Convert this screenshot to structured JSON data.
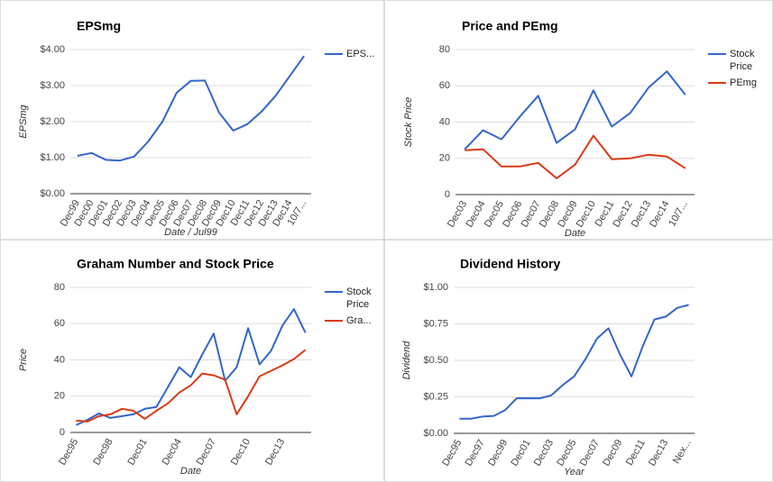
{
  "chart_data": [
    {
      "type": "line",
      "title": "EPSmg",
      "x_label": "Date / Jul99",
      "y_label": "EPSmg",
      "grid": true,
      "legend": "right",
      "categories": [
        "Dec99",
        "Dec00",
        "Dec01",
        "Dec02",
        "Dec03",
        "Dec04",
        "Dec05",
        "Dec06",
        "Dec07",
        "Dec08",
        "Dec09",
        "Dec10",
        "Dec11",
        "Dec12",
        "Dec13",
        "Dec14",
        "10/7..."
      ],
      "series": [
        {
          "name": "EPS...",
          "color": "#3366cc",
          "values": [
            1.05,
            1.13,
            0.94,
            0.92,
            1.03,
            1.45,
            2.0,
            2.8,
            3.13,
            3.14,
            2.25,
            1.75,
            1.93,
            2.28,
            2.72,
            3.27,
            3.82
          ]
        }
      ],
      "ylim": [
        0,
        4
      ],
      "yticks": [
        {
          "value": 0,
          "label": "$0.00"
        },
        {
          "value": 1,
          "label": "$1.00"
        },
        {
          "value": 2,
          "label": "$2.00"
        },
        {
          "value": 3,
          "label": "$3.00"
        },
        {
          "value": 4,
          "label": "$4.00"
        }
      ]
    },
    {
      "type": "line",
      "title": "Price and PEmg",
      "x_label": "Date",
      "y_label": "Stock Price",
      "grid": true,
      "legend": "right",
      "categories": [
        "Dec03",
        "Dec04",
        "Dec05",
        "Dec06",
        "Dec07",
        "Dec08",
        "Dec09",
        "Dec10",
        "Dec11",
        "Dec12",
        "Dec13",
        "Dec14",
        "10/7..."
      ],
      "series": [
        {
          "name": "Stock Price",
          "color": "#3366cc",
          "values": [
            25,
            35.5,
            30.5,
            43,
            54.5,
            28.5,
            36,
            57.5,
            37.5,
            45,
            59,
            68,
            55
          ]
        },
        {
          "name": "PEmg",
          "color": "#dc3912",
          "values": [
            24.5,
            25,
            15.5,
            15.5,
            17.5,
            9,
            16.5,
            32.5,
            19.5,
            20,
            22,
            21,
            14.5
          ]
        }
      ],
      "ylim": [
        0,
        80
      ],
      "yticks": [
        0,
        20,
        40,
        60,
        80
      ]
    },
    {
      "type": "line",
      "title": "Graham Number and Stock Price",
      "x_label": "Date",
      "y_label": "Price",
      "grid": true,
      "legend": "right",
      "categories": [
        "Dec95",
        null,
        null,
        "Dec98",
        null,
        null,
        "Dec01",
        null,
        null,
        "Dec04",
        null,
        null,
        "Dec07",
        null,
        null,
        "Dec10",
        null,
        null,
        "Dec13",
        null,
        null
      ],
      "series": [
        {
          "name": "Stock Price",
          "color": "#3366cc",
          "values": [
            4,
            7,
            10.5,
            8,
            9,
            10,
            13,
            14,
            25,
            36,
            30.5,
            43,
            54.5,
            28.5,
            36,
            57.5,
            37.5,
            45,
            59,
            68,
            55
          ]
        },
        {
          "name": "Gra...",
          "color": "#dc3912",
          "values": [
            6.5,
            6,
            9,
            10,
            13,
            12,
            7.5,
            12,
            16,
            22,
            26,
            32.5,
            31.5,
            29,
            10,
            20,
            31,
            34,
            37,
            40.5,
            45.5
          ]
        }
      ],
      "ylim": [
        0,
        80
      ],
      "yticks": [
        0,
        20,
        40,
        60,
        80
      ]
    },
    {
      "type": "line",
      "title": "Dividend History",
      "x_label": "Year",
      "y_label": "Dividend",
      "grid": true,
      "categories": [
        "Dec95",
        null,
        "Dec97",
        null,
        "Dec99",
        null,
        "Dec01",
        null,
        "Dec03",
        null,
        "Dec05",
        null,
        "Dec07",
        null,
        "Dec09",
        null,
        "Dec11",
        null,
        "Dec13",
        null,
        "Nex..."
      ],
      "series": [
        {
          "color": "#3366cc",
          "values": [
            0.1,
            0.1,
            0.115,
            0.12,
            0.16,
            0.24,
            0.24,
            0.24,
            0.26,
            0.33,
            0.39,
            0.51,
            0.65,
            0.72,
            0.54,
            0.39,
            0.6,
            0.78,
            0.8,
            0.86,
            0.88
          ]
        }
      ],
      "ylim": [
        0,
        1
      ],
      "yticks": [
        {
          "value": 0,
          "label": "$0.00"
        },
        {
          "value": 0.25,
          "label": "$0.25"
        },
        {
          "value": 0.5,
          "label": "$0.50"
        },
        {
          "value": 0.75,
          "label": "$0.75"
        },
        {
          "value": 1,
          "label": "$1.00"
        }
      ]
    }
  ]
}
